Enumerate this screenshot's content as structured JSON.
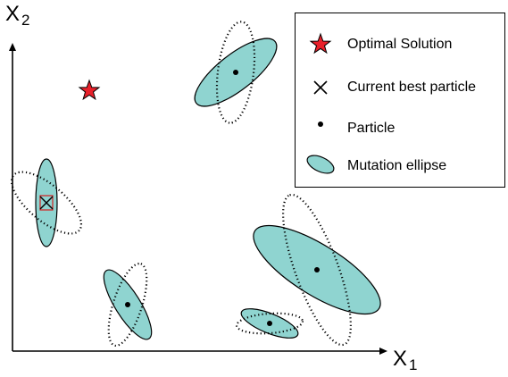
{
  "axes": {
    "x_label": "X",
    "x_subscript": "1",
    "y_label": "X",
    "y_subscript": "2"
  },
  "legend": {
    "items": [
      {
        "label": "Optimal Solution",
        "icon": "red-star-icon"
      },
      {
        "label": "Current best particle",
        "icon": "cross-marker-icon"
      },
      {
        "label": "Particle",
        "icon": "dot-marker-icon"
      },
      {
        "label": "Mutation ellipse",
        "icon": "ellipse-icon"
      }
    ]
  },
  "colors": {
    "ellipse_fill": "#8fd4d0",
    "ellipse_stroke": "#000000",
    "star_fill": "#e8202a",
    "best_box": "#d42020",
    "axis": "#000000"
  },
  "particles": [
    {
      "name": "particle-top-center",
      "is_best": false
    },
    {
      "name": "particle-left-best",
      "is_best": true
    },
    {
      "name": "particle-bottom-left",
      "is_best": false
    },
    {
      "name": "particle-right-large",
      "is_best": false
    },
    {
      "name": "particle-bottom-right-small",
      "is_best": false
    }
  ]
}
